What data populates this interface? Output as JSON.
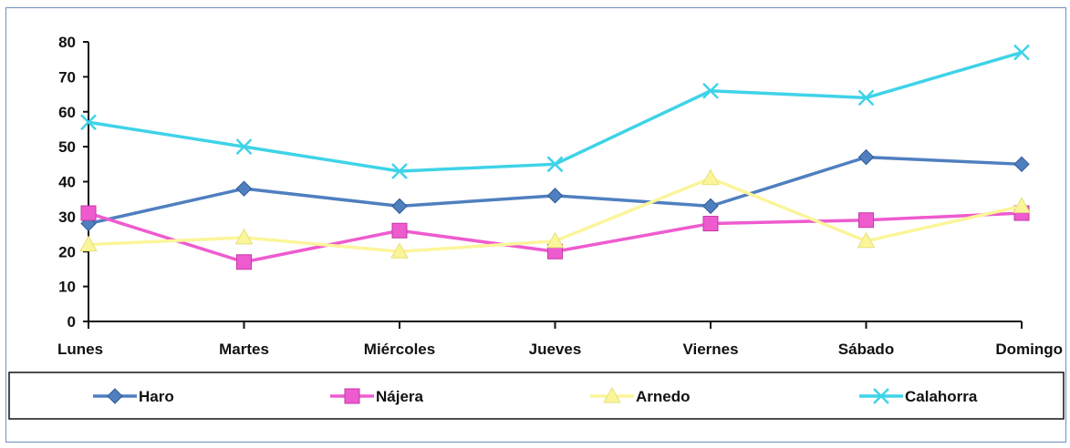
{
  "chart_data": {
    "type": "line",
    "categories": [
      "Lunes",
      "Martes",
      "Miércoles",
      "Jueves",
      "Viernes",
      "Sábado",
      "Domingo"
    ],
    "ylim": [
      0,
      80
    ],
    "yticks": [
      0,
      10,
      20,
      30,
      40,
      50,
      60,
      70,
      80
    ],
    "grid": false,
    "legend_position": "bottom",
    "series": [
      {
        "name": "Haro",
        "color": "#4f7fbf",
        "marker": "diamond",
        "values": [
          28,
          38,
          33,
          36,
          33,
          47,
          45
        ]
      },
      {
        "name": "Nájera",
        "color": "#ee5bcf",
        "marker": "square",
        "values": [
          31,
          17,
          26,
          20,
          28,
          29,
          31
        ]
      },
      {
        "name": "Arnedo",
        "color": "#fbf59a",
        "marker": "triangle",
        "values": [
          22,
          24,
          20,
          23,
          41,
          23,
          33
        ]
      },
      {
        "name": "Calahorra",
        "color": "#3ed3e8",
        "marker": "x",
        "values": [
          57,
          50,
          43,
          45,
          66,
          64,
          77
        ]
      }
    ]
  }
}
